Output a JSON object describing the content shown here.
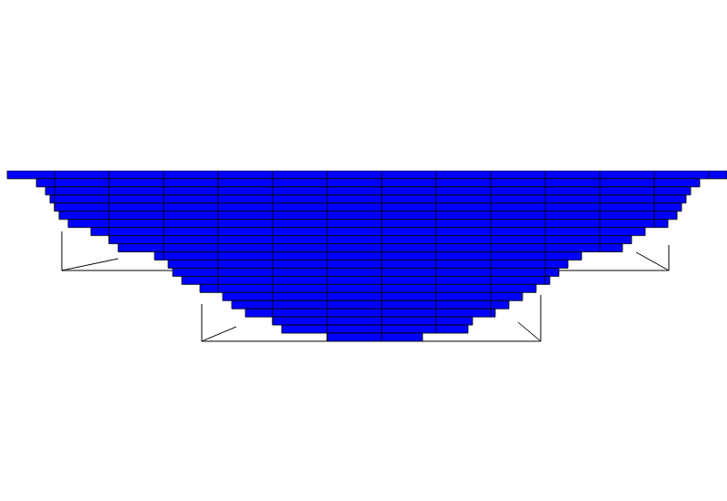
{
  "chart_data": {
    "type": "bar",
    "orientation": "horizontal",
    "color": "#0000ff",
    "categories": [
      null,
      null,
      null,
      null,
      null,
      null,
      null,
      null,
      null,
      null,
      null,
      null,
      null,
      null,
      null,
      null,
      null,
      null,
      null,
      null,
      null
    ],
    "ranges": [
      [
        8,
        800
      ],
      [
        40,
        770
      ],
      [
        50,
        760
      ],
      [
        55,
        755
      ],
      [
        60,
        750
      ],
      [
        65,
        745
      ],
      [
        75,
        735
      ],
      [
        100,
        710
      ],
      [
        120,
        695
      ],
      [
        130,
        685
      ],
      [
        170,
        640
      ],
      [
        185,
        625
      ],
      [
        190,
        615
      ],
      [
        200,
        605
      ],
      [
        220,
        590
      ],
      [
        245,
        575
      ],
      [
        255,
        560
      ],
      [
        270,
        545
      ],
      [
        300,
        520
      ],
      [
        310,
        515
      ],
      [
        360,
        465
      ]
    ],
    "xlim": [
      0,
      800
    ],
    "grid": false,
    "tick_labels": false
  }
}
